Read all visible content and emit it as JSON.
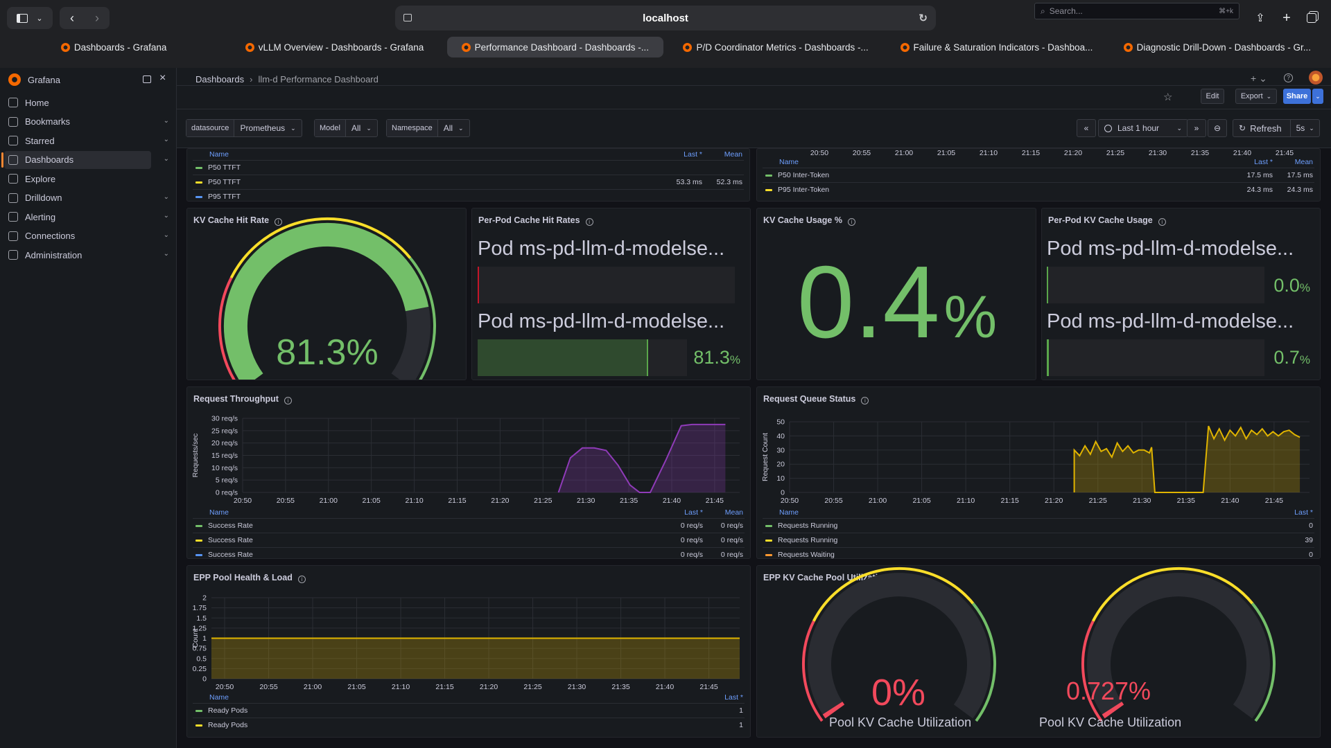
{
  "browser": {
    "url": "localhost",
    "tabs": [
      "Dashboards - Grafana",
      "vLLM Overview - Dashboards - Grafana",
      "Performance Dashboard - Dashboards -...",
      "P/D Coordinator Metrics - Dashboards -...",
      "Failure & Saturation Indicators - Dashboa...",
      "Diagnostic Drill-Down - Dashboards - Gr..."
    ]
  },
  "grafana": {
    "brand": "Grafana",
    "breadcrumb": [
      "Dashboards",
      "llm-d Performance Dashboard"
    ],
    "search_placeholder": "Search...",
    "search_shortcut": "⌘+k",
    "nav": [
      "Home",
      "Bookmarks",
      "Starred",
      "Dashboards",
      "Explore",
      "Drilldown",
      "Alerting",
      "Connections",
      "Administration"
    ],
    "toolbar": {
      "edit": "Edit",
      "export": "Export",
      "share": "Share"
    },
    "vars": [
      {
        "label": "datasource",
        "value": "Prometheus"
      },
      {
        "label": "Model",
        "value": "All"
      },
      {
        "label": "Namespace",
        "value": "All"
      }
    ],
    "time_range": "Last 1 hour",
    "refresh": "Refresh",
    "refresh_interval": "5s"
  },
  "panels": {
    "ttft": {
      "legend_headers": [
        "Name",
        "Last *",
        "Mean"
      ],
      "rows": [
        {
          "name": "P50 TTFT",
          "last": "",
          "mean": "",
          "color": "#73bf69"
        },
        {
          "name": "P50 TTFT",
          "last": "53.3 ms",
          "mean": "52.3 ms",
          "color": "#fade2a"
        },
        {
          "name": "P95 TTFT",
          "last": "",
          "mean": "",
          "color": "#5794f2"
        }
      ]
    },
    "itl": {
      "ticks": [
        "20:50",
        "20:55",
        "21:00",
        "21:05",
        "21:10",
        "21:15",
        "21:20",
        "21:25",
        "21:30",
        "21:35",
        "21:40",
        "21:45"
      ],
      "legend_headers": [
        "Name",
        "Last *",
        "Mean"
      ],
      "rows": [
        {
          "name": "P50 Inter-Token",
          "last": "17.5 ms",
          "mean": "17.5 ms",
          "color": "#73bf69"
        },
        {
          "name": "P95 Inter-Token",
          "last": "24.3 ms",
          "mean": "24.3 ms",
          "color": "#fade2a"
        }
      ]
    },
    "kv_hit": {
      "title": "KV Cache Hit Rate",
      "value": "81.3%",
      "fraction": 0.813
    },
    "pod_hit": {
      "title": "Per-Pod Cache Hit Rates",
      "pods": [
        {
          "label": "Pod ms-pd-llm-d-modelse...",
          "value": "",
          "fraction": 0.0
        },
        {
          "label": "Pod ms-pd-llm-d-modelse...",
          "value": "81.3",
          "unit": "%",
          "fraction": 0.813
        }
      ]
    },
    "kv_usage": {
      "title": "KV Cache Usage %",
      "value": "0.4",
      "unit": "%"
    },
    "pod_kv": {
      "title": "Per-Pod KV Cache Usage",
      "pods": [
        {
          "label": "Pod ms-pd-llm-d-modelse...",
          "value": "0.0",
          "unit": "%",
          "fraction": 0.0
        },
        {
          "label": "Pod ms-pd-llm-d-modelse...",
          "value": "0.7",
          "unit": "%",
          "fraction": 0.007
        }
      ]
    },
    "throughput": {
      "title": "Request Throughput",
      "legend_headers": [
        "Name",
        "Last *",
        "Mean"
      ],
      "rows": [
        {
          "name": "Success Rate",
          "last": "0 req/s",
          "mean": "0 req/s",
          "color": "#73bf69"
        },
        {
          "name": "Success Rate",
          "last": "0 req/s",
          "mean": "0 req/s",
          "color": "#fade2a"
        },
        {
          "name": "Success Rate",
          "last": "0 req/s",
          "mean": "0 req/s",
          "color": "#5794f2"
        }
      ]
    },
    "queue": {
      "title": "Request Queue Status",
      "legend_headers": [
        "Name",
        "Last *"
      ],
      "rows": [
        {
          "name": "Requests Running",
          "last": "0",
          "color": "#73bf69"
        },
        {
          "name": "Requests Running",
          "last": "39",
          "color": "#fade2a"
        },
        {
          "name": "Requests Waiting",
          "last": "0",
          "color": "#ff9830"
        }
      ]
    },
    "epp": {
      "title": "EPP Pool Health & Load",
      "legend_headers": [
        "Name",
        "Last *"
      ],
      "rows": [
        {
          "name": "Ready Pods",
          "last": "1",
          "color": "#73bf69"
        },
        {
          "name": "Ready Pods",
          "last": "1",
          "color": "#fade2a"
        }
      ]
    },
    "epp_kv": {
      "title": "EPP KV Cache Pool Utilization",
      "gauges": [
        {
          "value": "0%",
          "label": "Pool KV Cache Utilization",
          "fraction": 0.0
        },
        {
          "value": "0.727%",
          "label": "Pool KV Cache Utilization",
          "fraction": 0.00727
        }
      ]
    }
  },
  "chart_data": [
    {
      "type": "area",
      "title": "Request Throughput",
      "ylabel": "Requests/sec",
      "x": [
        "20:50",
        "20:55",
        "21:00",
        "21:05",
        "21:10",
        "21:15",
        "21:20",
        "21:25",
        "21:30",
        "21:35",
        "21:40",
        "21:45"
      ],
      "ylim": [
        0,
        30
      ],
      "yticks": [
        "0 req/s",
        "5 req/s",
        "10 req/s",
        "15 req/s",
        "20 req/s",
        "25 req/s",
        "30 req/s"
      ],
      "series": [
        {
          "name": "Success Rate",
          "color": "#8f3bb8",
          "points": [
            [
              26.5,
              0
            ],
            [
              27.5,
              14
            ],
            [
              28.5,
              18
            ],
            [
              29.5,
              18
            ],
            [
              30.5,
              17
            ],
            [
              31.5,
              11
            ],
            [
              32.5,
              3
            ],
            [
              33.3,
              0
            ],
            [
              34.2,
              0
            ],
            [
              35.5,
              13
            ],
            [
              36.8,
              27
            ],
            [
              37.7,
              27.5
            ],
            [
              40.5,
              27.5
            ]
          ]
        }
      ]
    },
    {
      "type": "area",
      "title": "Request Queue Status",
      "ylabel": "Request Count",
      "x": [
        "20:50",
        "20:55",
        "21:00",
        "21:05",
        "21:10",
        "21:15",
        "21:20",
        "21:25",
        "21:30",
        "21:35",
        "21:40",
        "21:45"
      ],
      "ylim": [
        0,
        50
      ],
      "yticks": [
        "0",
        "10",
        "20",
        "30",
        "40",
        "50"
      ],
      "series": [
        {
          "name": "Requests Running",
          "color": "#e0b400",
          "points": [
            [
              26.5,
              0
            ],
            [
              26.5,
              30
            ],
            [
              27,
              26
            ],
            [
              27.5,
              33
            ],
            [
              28,
              27
            ],
            [
              28.5,
              36
            ],
            [
              29,
              29
            ],
            [
              29.5,
              31
            ],
            [
              30,
              25
            ],
            [
              30.5,
              35
            ],
            [
              31,
              29
            ],
            [
              31.5,
              33
            ],
            [
              32,
              28
            ],
            [
              32.5,
              30
            ],
            [
              33,
              30
            ],
            [
              33.5,
              28
            ],
            [
              33.7,
              32
            ],
            [
              34,
              0
            ],
            [
              38.5,
              0
            ],
            [
              39,
              47
            ],
            [
              39.5,
              38
            ],
            [
              40,
              45
            ],
            [
              40.5,
              37
            ],
            [
              41,
              44
            ],
            [
              41.5,
              40
            ],
            [
              42,
              46
            ],
            [
              42.5,
              38
            ],
            [
              43,
              44
            ],
            [
              43.5,
              41
            ],
            [
              44,
              45
            ],
            [
              44.5,
              40
            ],
            [
              45,
              43
            ],
            [
              45.5,
              40
            ],
            [
              46,
              43
            ],
            [
              46.5,
              44
            ],
            [
              47,
              41
            ],
            [
              47.5,
              39
            ]
          ]
        }
      ]
    },
    {
      "type": "area",
      "title": "EPP Pool Health & Load",
      "ylabel": "Count",
      "x": [
        "20:50",
        "20:55",
        "21:00",
        "21:05",
        "21:10",
        "21:15",
        "21:20",
        "21:25",
        "21:30",
        "21:35",
        "21:40",
        "21:45"
      ],
      "ylim": [
        0,
        2
      ],
      "yticks": [
        "0",
        "0.25",
        "0.5",
        "0.75",
        "1",
        "1.25",
        "1.5",
        "1.75",
        "2"
      ],
      "series": [
        {
          "name": "Ready Pods",
          "color": "#e0b400",
          "points": [
            [
              -1.5,
              1
            ],
            [
              58.5,
              1
            ]
          ]
        }
      ]
    }
  ]
}
